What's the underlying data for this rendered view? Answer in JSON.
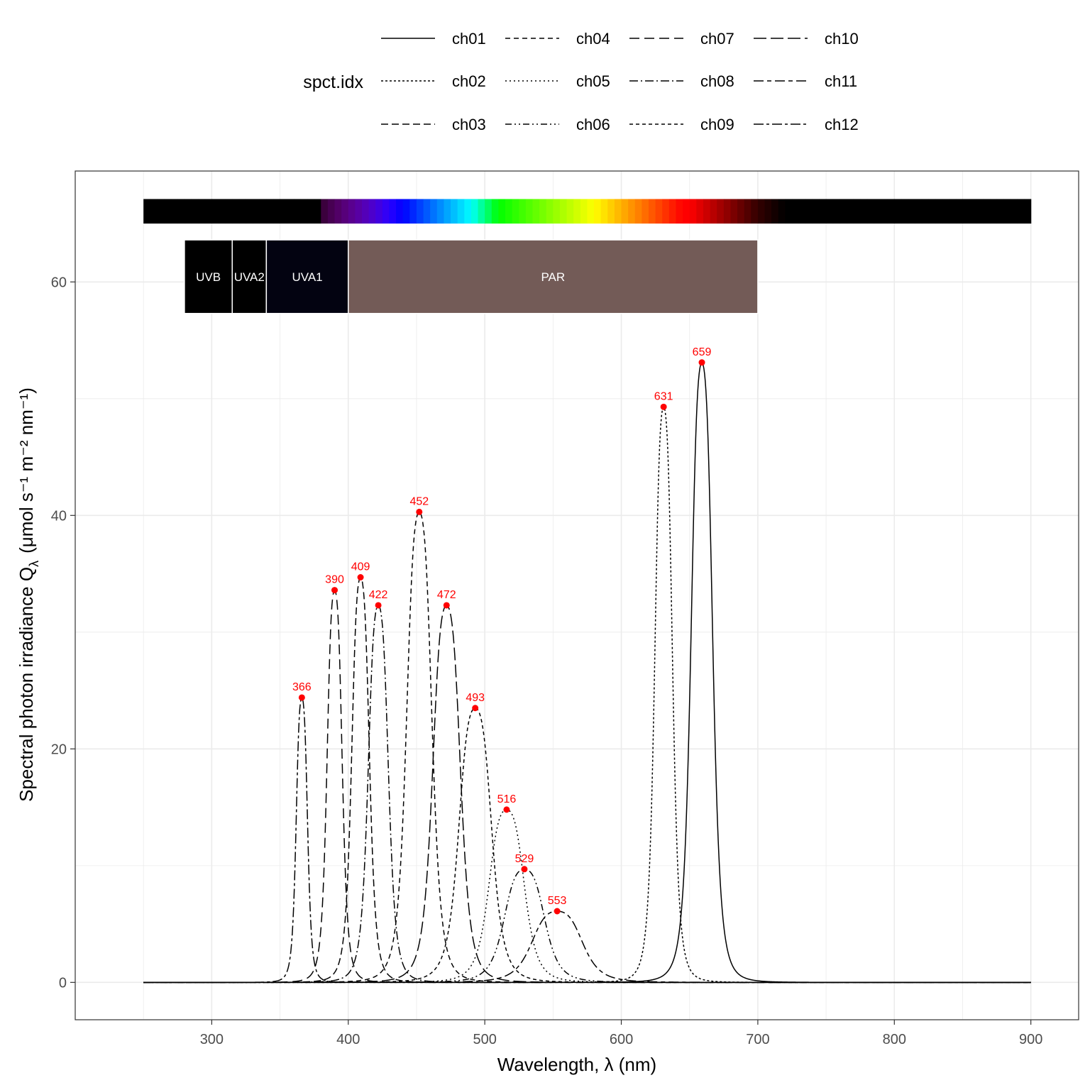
{
  "chart_data": {
    "type": "line",
    "xlabel": "Wavelength, λ (nm)",
    "ylabel": "Spectral photon irradiance Q",
    "ylabel_subscript": "λ",
    "ylabel_units": "(μmol s⁻¹ m⁻² nm⁻¹)",
    "xlim": [
      200,
      935
    ],
    "ylim": [
      -3.2,
      69.5
    ],
    "x_ticks": [
      300,
      400,
      500,
      600,
      700,
      800,
      900
    ],
    "y_ticks": [
      0,
      20,
      40,
      60
    ],
    "x_range_plotted": [
      250,
      900
    ],
    "grid": true,
    "legend": {
      "title": "spct.idx",
      "placement": "top",
      "entries": [
        "ch01",
        "ch04",
        "ch07",
        "ch10",
        "ch02",
        "ch05",
        "ch08",
        "ch11",
        "ch03",
        "ch06",
        "ch09",
        "ch12"
      ]
    },
    "series": [
      {
        "name": "ch01",
        "peak_x": 659,
        "peak_y": 53.1,
        "fwhm": 17,
        "dash": ""
      },
      {
        "name": "ch02",
        "peak_x": 631,
        "peak_y": 49.3,
        "fwhm": 14,
        "dash": "3,3"
      },
      {
        "name": "ch03",
        "peak_x": 409,
        "peak_y": 34.7,
        "fwhm": 14,
        "dash": "10,5"
      },
      {
        "name": "ch04",
        "peak_x": 452,
        "peak_y": 40.3,
        "fwhm": 20,
        "dash": "7,5"
      },
      {
        "name": "ch05",
        "peak_x": 516,
        "peak_y": 14.8,
        "fwhm": 28,
        "dash": "2,4"
      },
      {
        "name": "ch06",
        "peak_x": 529,
        "peak_y": 9.7,
        "fwhm": 32,
        "dash": "9,4,2,4,2,4"
      },
      {
        "name": "ch07",
        "peak_x": 390,
        "peak_y": 33.6,
        "fwhm": 12,
        "dash": "14,7"
      },
      {
        "name": "ch08",
        "peak_x": 422,
        "peak_y": 32.3,
        "fwhm": 16,
        "dash": "12,4,2,4"
      },
      {
        "name": "ch09",
        "peak_x": 493,
        "peak_y": 23.5,
        "fwhm": 26,
        "dash": "5,4"
      },
      {
        "name": "ch10",
        "peak_x": 472,
        "peak_y": 32.3,
        "fwhm": 22,
        "dash": "18,6"
      },
      {
        "name": "ch11",
        "peak_x": 553,
        "peak_y": 6.1,
        "fwhm": 40,
        "dash": "14,5,6,5"
      },
      {
        "name": "ch12",
        "peak_x": 366,
        "peak_y": 24.4,
        "fwhm": 9,
        "dash": "14,4,4,4"
      }
    ],
    "peak_labels": [
      {
        "x": 366,
        "y": 24.4,
        "label": "366"
      },
      {
        "x": 390,
        "y": 33.6,
        "label": "390"
      },
      {
        "x": 409,
        "y": 34.7,
        "label": "409"
      },
      {
        "x": 422,
        "y": 32.3,
        "label": "422"
      },
      {
        "x": 452,
        "y": 40.3,
        "label": "452"
      },
      {
        "x": 472,
        "y": 32.3,
        "label": "472"
      },
      {
        "x": 493,
        "y": 23.5,
        "label": "493"
      },
      {
        "x": 516,
        "y": 14.8,
        "label": "516"
      },
      {
        "x": 529,
        "y": 9.7,
        "label": "529"
      },
      {
        "x": 553,
        "y": 6.1,
        "label": "553"
      },
      {
        "x": 631,
        "y": 49.3,
        "label": "631"
      },
      {
        "x": 659,
        "y": 53.1,
        "label": "659"
      }
    ],
    "spectrum_bar": {
      "x_start": 250,
      "x_end": 900,
      "y_low": 65.0,
      "y_high": 67.1
    },
    "wavebands": [
      {
        "name": "UVB",
        "x_start": 280,
        "x_end": 315,
        "color": "#000000"
      },
      {
        "name": "UVA2",
        "x_start": 315,
        "x_end": 340,
        "color": "#000000"
      },
      {
        "name": "UVA1",
        "x_start": 340,
        "x_end": 400,
        "color": "#030311"
      },
      {
        "name": "PAR",
        "x_start": 400,
        "x_end": 700,
        "color": "#735b57"
      }
    ],
    "waveband_y_range": [
      57.3,
      63.6
    ],
    "colors": {
      "curve": "#000000",
      "peak_point": "#ff0000",
      "grid": "#ebebeb",
      "panel_border": "#333333"
    }
  }
}
